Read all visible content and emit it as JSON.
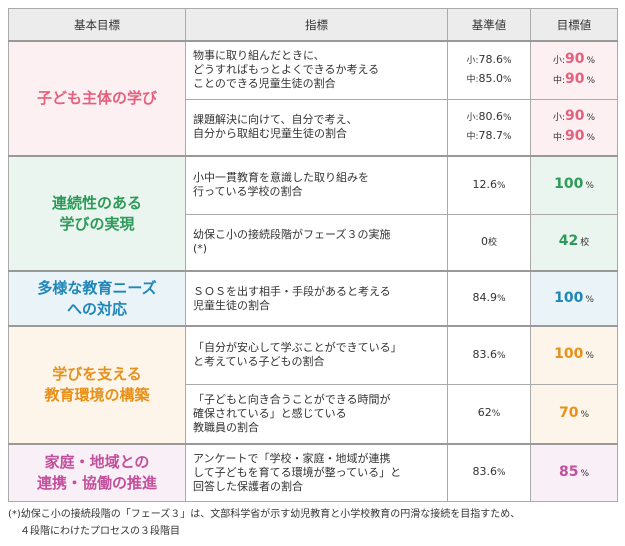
{
  "header": [
    "基本目標",
    "指標",
    "基準値",
    "目標値"
  ],
  "groups": [
    {
      "goal": [
        "子ども主体の学び"
      ],
      "color": "#e4607c",
      "rows": [
        {
          "indicator": [
            "物事に取り組んだときに、",
            "どうすればもっとよくできるか考える",
            "ことのできる児童生徒の割合"
          ],
          "baseline": [
            {
              "prefix": "小:",
              "num": "78.6",
              "unit": "%"
            },
            {
              "prefix": "中:",
              "num": "85.0",
              "unit": "%"
            }
          ],
          "target": [
            {
              "prefix": "小:",
              "num": "90",
              "unit": "%"
            },
            {
              "prefix": "中:",
              "num": "90",
              "unit": "%"
            }
          ]
        },
        {
          "indicator": [
            "課題解決に向けて、自分で考え、",
            "自分から取組む児童生徒の割合"
          ],
          "baseline": [
            {
              "prefix": "小:",
              "num": "80.6",
              "unit": "%"
            },
            {
              "prefix": "中:",
              "num": "78.7",
              "unit": "%"
            }
          ],
          "target": [
            {
              "prefix": "小:",
              "num": "90",
              "unit": "%"
            },
            {
              "prefix": "中:",
              "num": "90",
              "unit": "%"
            }
          ]
        }
      ]
    },
    {
      "goal": [
        "連続性のある",
        "学びの実現"
      ],
      "color": "#2e9a5a",
      "rows": [
        {
          "indicator": [
            "小中一貫教育を意識した取り組みを",
            "行っている学校の割合"
          ],
          "baseline": [
            {
              "num": "12.6",
              "unit": "%"
            }
          ],
          "target": [
            {
              "num": "100",
              "unit": "%"
            }
          ]
        },
        {
          "indicator": [
            "幼保こ小の接続段階がフェーズ３の実施",
            "(*)"
          ],
          "baseline": [
            {
              "num": "0",
              "unit": "校"
            }
          ],
          "target": [
            {
              "num": "42",
              "unit": "校"
            }
          ]
        }
      ]
    },
    {
      "goal": [
        "多様な教育ニーズ",
        "への対応"
      ],
      "color": "#1f86b8",
      "rows": [
        {
          "indicator": [
            "ＳＯＳを出す相手・手段があると考える",
            "児童生徒の割合"
          ],
          "baseline": [
            {
              "num": "84.9",
              "unit": "%"
            }
          ],
          "target": [
            {
              "num": "100",
              "unit": "%"
            }
          ]
        }
      ]
    },
    {
      "goal": [
        "学びを支える",
        "教育環境の構築"
      ],
      "color": "#e8901a",
      "rows": [
        {
          "indicator": [
            "「自分が安心して学ぶことができている」",
            "と考えている子どもの割合"
          ],
          "baseline": [
            {
              "num": "83.6",
              "unit": "%"
            }
          ],
          "target": [
            {
              "num": "100",
              "unit": "%"
            }
          ]
        },
        {
          "indicator": [
            "「子どもと向き合うことができる時間が",
            "確保されている」と感じている",
            "教職員の割合"
          ],
          "baseline": [
            {
              "num": "62",
              "unit": "%"
            }
          ],
          "target": [
            {
              "num": "70",
              "unit": "%"
            }
          ]
        }
      ]
    },
    {
      "goal": [
        "家庭・地域との",
        "連携・協働の推進"
      ],
      "color": "#c2509c",
      "rows": [
        {
          "indicator": [
            "アンケートで「学校・家庭・地域が連携",
            "して子どもを育てる環境が整っている」と",
            "回答した保護者の割合"
          ],
          "baseline": [
            {
              "num": "83.6",
              "unit": "%"
            }
          ],
          "target": [
            {
              "num": "85",
              "unit": "%"
            }
          ]
        }
      ]
    }
  ],
  "footnote": [
    "(*)幼保こ小の接続段階の「フェーズ３」は、文部科学省が示す幼児教育と小学校教育の円滑な接続を目指すため、",
    "４段階にわけたプロセスの３段階目"
  ]
}
